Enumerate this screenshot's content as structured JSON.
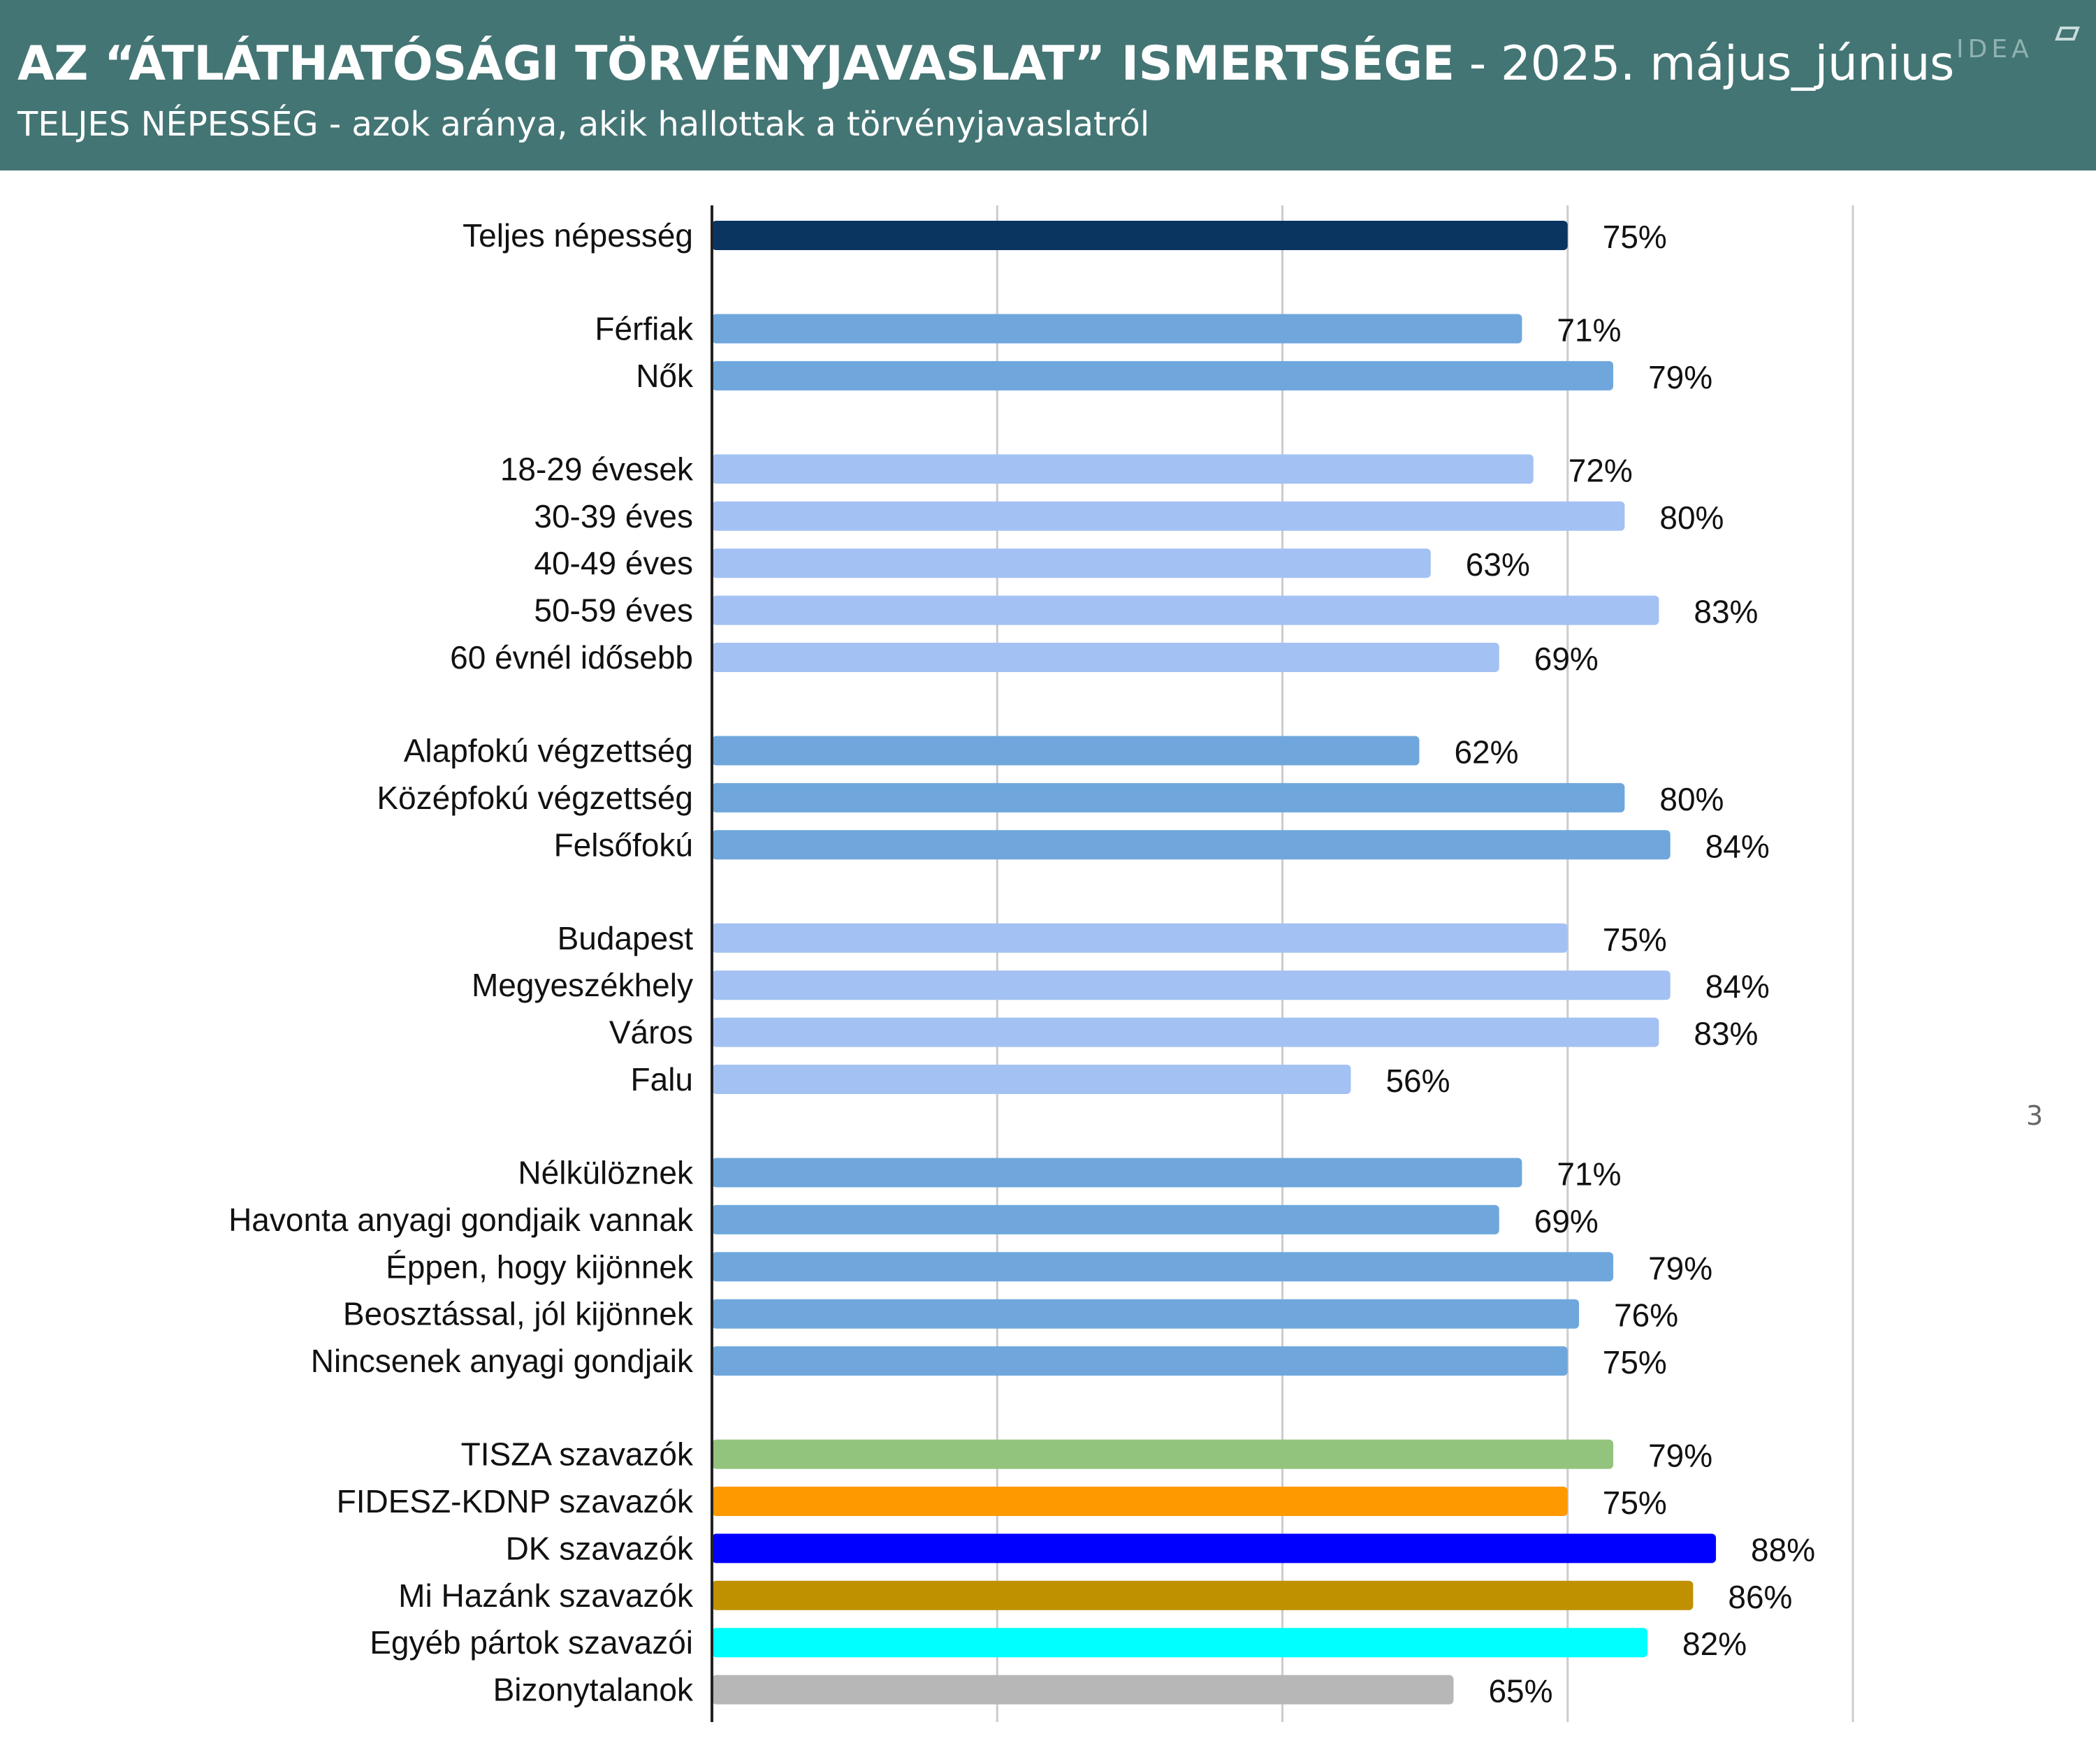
{
  "header": {
    "title_main": "AZ “ÁTLÁTHATÓSÁGI TÖRVÉNYJAVASLAT” ISMERTSÉGE",
    "title_date": " - 2025. május_június",
    "subtitle": "TELJES NÉPESSÉG  - azok aránya, akik hallottak a törvényjavaslatról",
    "logo_text": "IDEA",
    "background_color": "#437574"
  },
  "page_number": "3",
  "chart_data": {
    "type": "bar",
    "orientation": "horizontal",
    "xlim": [
      0,
      100
    ],
    "grid": true,
    "value_suffix": "%",
    "categories": [
      "Teljes népesség",
      "Férfiak",
      "Nők",
      "18-29 évesek",
      "30-39 éves",
      "40-49 éves",
      "50-59 éves",
      "60 évnél idősebb",
      "Alapfokú végzettség",
      "Középfokú végzettség",
      "Felsőfokú",
      "Budapest",
      "Megyeszékhely",
      "Város",
      "Falu",
      "Nélkülöznek",
      "Havonta anyagi gondjaik vannak",
      "Éppen, hogy kijönnek",
      "Beosztással, jól kijönnek",
      "Nincsenek anyagi gondjaik",
      "TISZA szavazók",
      "FIDESZ-KDNP szavazók",
      "DK szavazók",
      "Mi Hazánk szavazók",
      "Egyéb pártok szavazói",
      "Bizonytalanok"
    ],
    "values": [
      75,
      71,
      79,
      72,
      80,
      63,
      83,
      69,
      62,
      80,
      84,
      75,
      84,
      83,
      56,
      71,
      69,
      79,
      76,
      75,
      79,
      75,
      88,
      86,
      82,
      65
    ],
    "value_labels": [
      "75%",
      "71%",
      "79%",
      "72%",
      "80%",
      "63%",
      "83%",
      "69%",
      "62%",
      "80%",
      "84%",
      "75%",
      "84%",
      "83%",
      "56%",
      "71%",
      "69%",
      "79%",
      "76%",
      "75%",
      "79%",
      "75%",
      "88%",
      "86%",
      "82%",
      "65%"
    ],
    "group_sizes": [
      1,
      2,
      5,
      3,
      4,
      5,
      6
    ],
    "colors": [
      "#0a3561",
      "#6fa7dc",
      "#6fa7dc",
      "#a3c1f3",
      "#a3c1f3",
      "#a3c1f3",
      "#a3c1f3",
      "#a3c1f3",
      "#6fa7dc",
      "#6fa7dc",
      "#6fa7dc",
      "#a3c1f3",
      "#a3c1f3",
      "#a3c1f3",
      "#a3c1f3",
      "#6fa7dc",
      "#6fa7dc",
      "#6fa7dc",
      "#6fa7dc",
      "#6fa7dc",
      "#93c47d",
      "#ff9900",
      "#0000ff",
      "#bf9000",
      "#00ffff",
      "#b7b7b7"
    ]
  }
}
